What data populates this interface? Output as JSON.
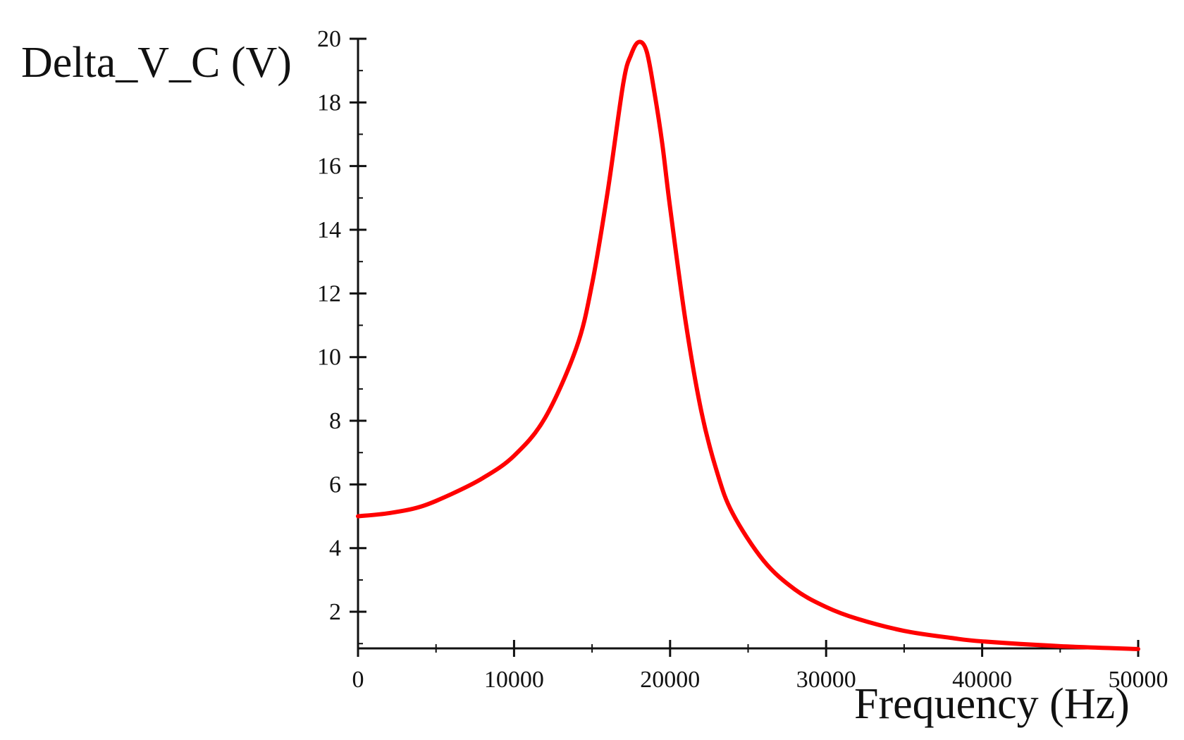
{
  "chart_data": {
    "type": "line",
    "title": "",
    "xlabel": "Frequency (Hz)",
    "ylabel": "Delta_V_C (V)",
    "xlim": [
      0,
      50000
    ],
    "ylim": [
      0.85,
      20
    ],
    "grid": false,
    "line_color": "#ff0000",
    "x_ticks": [
      0,
      10000,
      20000,
      30000,
      40000,
      50000
    ],
    "x_tick_labels": [
      "0",
      "10000",
      "20000",
      "30000",
      "40000",
      "50000"
    ],
    "y_ticks": [
      2,
      4,
      6,
      8,
      10,
      12,
      14,
      16,
      18,
      20
    ],
    "y_tick_labels": [
      "2",
      "4",
      "6",
      "8",
      "10",
      "12",
      "14",
      "16",
      "18",
      "20"
    ],
    "series": [
      {
        "x": [
          0,
          2000,
          4000,
          6000,
          8000,
          10000,
          12000,
          14000,
          15000,
          16000,
          17000,
          17500,
          18000,
          18500,
          19000,
          19500,
          20000,
          21000,
          22000,
          23000,
          24000,
          26000,
          28000,
          30000,
          32000,
          35000,
          38000,
          40000,
          45000,
          50000
        ],
        "y": [
          5.0,
          5.1,
          5.3,
          5.7,
          6.2,
          6.9,
          8.1,
          10.3,
          12.3,
          15.2,
          18.6,
          19.5,
          19.9,
          19.6,
          18.3,
          16.7,
          14.7,
          11.1,
          8.3,
          6.4,
          5.1,
          3.6,
          2.7,
          2.15,
          1.78,
          1.4,
          1.18,
          1.07,
          0.92,
          0.83
        ]
      }
    ]
  }
}
